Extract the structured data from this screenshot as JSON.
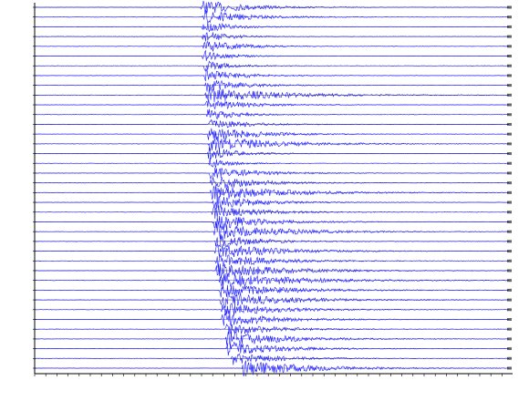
{
  "chart_data": {
    "type": "record-section",
    "color": "#1a1aff",
    "xlim": [
      0,
      100
    ],
    "traces": [
      {
        "onset": 34.7,
        "amplitude": 0.55,
        "duration": 9
      },
      {
        "onset": 35.1,
        "amplitude": 0.5,
        "duration": 9
      },
      {
        "onset": 34.9,
        "amplitude": 0.45,
        "duration": 6
      },
      {
        "onset": 34.9,
        "amplitude": 0.5,
        "duration": 5
      },
      {
        "onset": 35.1,
        "amplitude": 0.5,
        "duration": 7
      },
      {
        "onset": 35.0,
        "amplitude": 0.45,
        "duration": 5
      },
      {
        "onset": 35.1,
        "amplitude": 0.45,
        "duration": 5
      },
      {
        "onset": 35.3,
        "amplitude": 0.5,
        "duration": 7
      },
      {
        "onset": 35.5,
        "amplitude": 0.55,
        "duration": 7
      },
      {
        "onset": 35.5,
        "amplitude": 0.6,
        "duration": 14
      },
      {
        "onset": 35.7,
        "amplitude": 0.45,
        "duration": 8
      },
      {
        "onset": 35.9,
        "amplitude": 0.45,
        "duration": 6
      },
      {
        "onset": 36.3,
        "amplitude": 0.45,
        "duration": 7
      },
      {
        "onset": 36.1,
        "amplitude": 0.6,
        "duration": 9
      },
      {
        "onset": 36.3,
        "amplitude": 0.6,
        "duration": 13
      },
      {
        "onset": 36.1,
        "amplitude": 0.55,
        "duration": 6
      },
      {
        "onset": 36.3,
        "amplitude": 0.45,
        "duration": 4
      },
      {
        "onset": 36.5,
        "amplitude": 0.5,
        "duration": 9
      },
      {
        "onset": 36.7,
        "amplitude": 0.55,
        "duration": 9
      },
      {
        "onset": 36.7,
        "amplitude": 0.6,
        "duration": 14
      },
      {
        "onset": 36.9,
        "amplitude": 0.55,
        "duration": 9
      },
      {
        "onset": 37.0,
        "amplitude": 0.55,
        "duration": 9
      },
      {
        "onset": 37.2,
        "amplitude": 0.6,
        "duration": 10
      },
      {
        "onset": 37.4,
        "amplitude": 0.65,
        "duration": 13
      },
      {
        "onset": 37.6,
        "amplitude": 0.6,
        "duration": 8
      },
      {
        "onset": 37.6,
        "amplitude": 0.6,
        "duration": 12
      },
      {
        "onset": 37.8,
        "amplitude": 0.55,
        "duration": 11
      },
      {
        "onset": 37.8,
        "amplitude": 0.6,
        "duration": 13
      },
      {
        "onset": 38.6,
        "amplitude": 0.6,
        "duration": 15
      },
      {
        "onset": 38.6,
        "amplitude": 0.6,
        "duration": 12
      },
      {
        "onset": 38.7,
        "amplitude": 0.6,
        "duration": 13
      },
      {
        "onset": 38.9,
        "amplitude": 0.55,
        "duration": 11
      },
      {
        "onset": 39.0,
        "amplitude": 0.6,
        "duration": 10
      },
      {
        "onset": 39.8,
        "amplitude": 0.55,
        "duration": 9
      },
      {
        "onset": 39.8,
        "amplitude": 0.6,
        "duration": 12
      },
      {
        "onset": 40.0,
        "amplitude": 0.55,
        "duration": 10
      },
      {
        "onset": 41.0,
        "amplitude": 0.5,
        "duration": 9
      },
      {
        "onset": 43.3,
        "amplitude": 0.6,
        "duration": 13
      }
    ]
  }
}
